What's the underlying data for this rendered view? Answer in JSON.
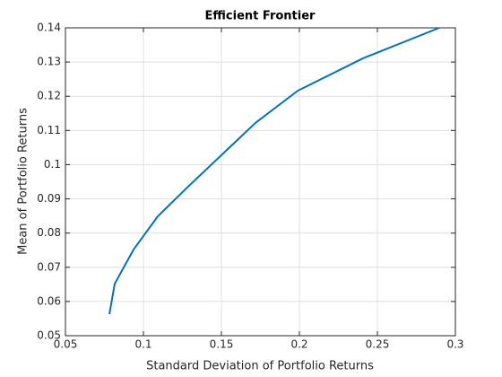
{
  "chart_data": {
    "type": "line",
    "title": "Efficient Frontier",
    "x_label": "Standard Deviation of Portfolio Returns",
    "y_label": "Mean of Portfolio Returns",
    "series": [
      {
        "color": "#0072bd",
        "x": [
          0.0782,
          0.0816,
          0.0937,
          0.1092,
          0.1287,
          0.1718,
          0.1989,
          0.2408,
          0.2897
        ],
        "values": [
          0.0563,
          0.0652,
          0.0752,
          0.0849,
          0.0936,
          0.1122,
          0.1216,
          0.1311,
          0.14
        ]
      }
    ],
    "xlim": [
      0.05,
      0.3
    ],
    "xticks": [
      0.05,
      0.1,
      0.15,
      0.2,
      0.25,
      0.3
    ],
    "ylim": [
      0.05,
      0.14
    ],
    "yticks": [
      0.05,
      0.06,
      0.07,
      0.08,
      0.09,
      0.1,
      0.11,
      0.12,
      0.13,
      0.14
    ],
    "grid": true
  }
}
